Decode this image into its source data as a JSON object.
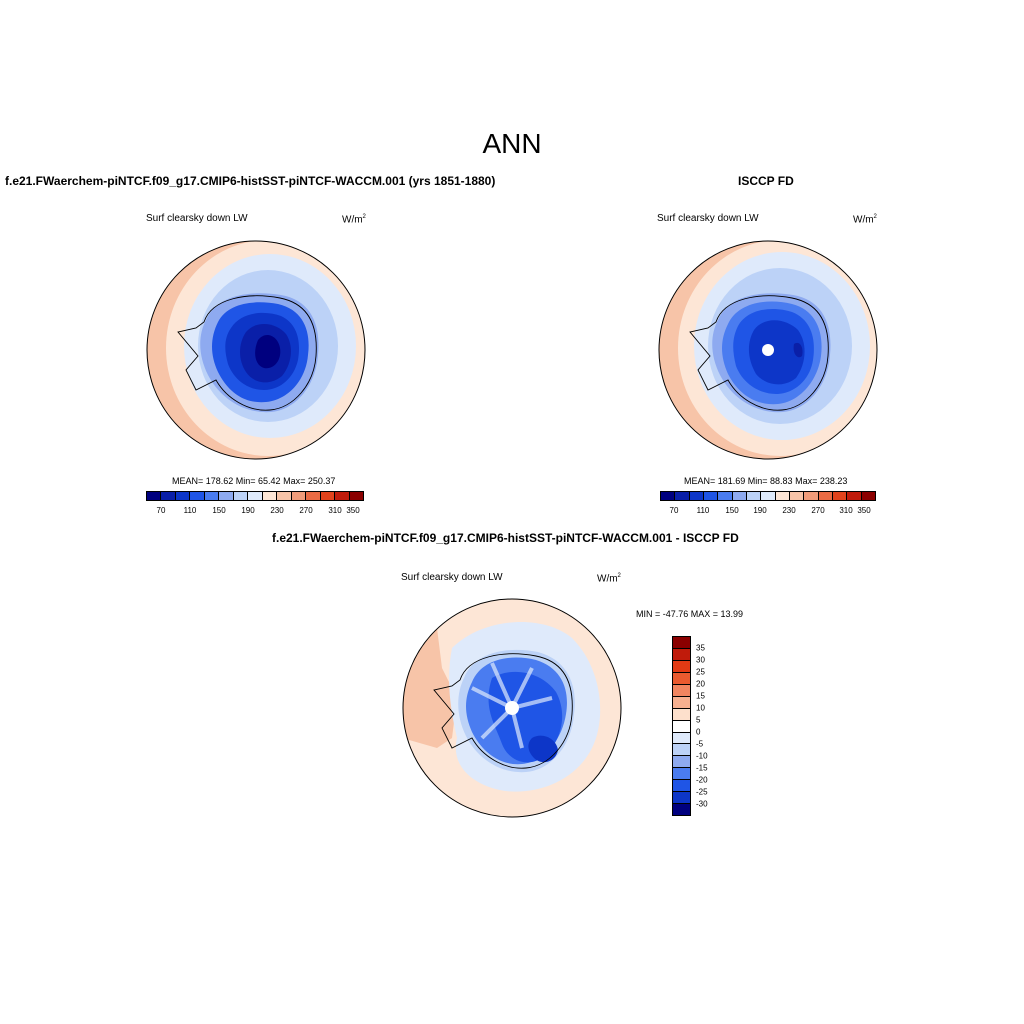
{
  "main_title": "ANN",
  "top_left": {
    "title": "f.e21.FWaerchem-piNTCF.f09_g17.CMIP6-histSST-piNTCF-WACCM.001 (yrs 1851-1880)",
    "variable": "Surf clearsky down LW",
    "units": "W/m",
    "units_sup": "2",
    "stats": "MEAN= 178.62  Min=  65.42  Max= 250.37",
    "cbar_labels": [
      "70",
      "110",
      "150",
      "190",
      "230",
      "270",
      "310",
      "350"
    ]
  },
  "top_right": {
    "title": "ISCCP FD",
    "variable": "Surf clearsky down LW",
    "units": "W/m",
    "units_sup": "2",
    "stats": "MEAN= 181.69  Min=  88.83  Max= 238.23",
    "cbar_labels": [
      "70",
      "110",
      "150",
      "190",
      "230",
      "270",
      "310",
      "350"
    ]
  },
  "bottom": {
    "title": "f.e21.FWaerchem-piNTCF.f09_g17.CMIP6-histSST-piNTCF-WACCM.001 - ISCCP FD",
    "variable": "Surf clearsky down LW",
    "units": "W/m",
    "units_sup": "2",
    "stats": "MIN = -47.76 MAX =  13.99",
    "cbar_labels": [
      "35",
      "30",
      "25",
      "20",
      "15",
      "10",
      "5",
      "0",
      "-5",
      "-10",
      "-15",
      "-20",
      "-25",
      "-30",
      "-35"
    ]
  },
  "colors": {
    "abs_scale": [
      "#00007f",
      "#0a1fa8",
      "#0d36c8",
      "#1f55e6",
      "#4a7cf0",
      "#8eaaf0",
      "#bcd2f7",
      "#dfeafb",
      "#fde6d6",
      "#f7c4a8",
      "#f19c7a",
      "#ea6b44",
      "#e2431c",
      "#c01b0b",
      "#8b0000"
    ],
    "diff_scale": [
      "#8b0000",
      "#c01b0b",
      "#e23a14",
      "#ea5a2f",
      "#f18560",
      "#f7b090",
      "#fde0cc",
      "#ffffff",
      "#dfeafb",
      "#bcd2f7",
      "#8eaaf0",
      "#4a7cf0",
      "#1f55e6",
      "#0d36c8",
      "#00007f"
    ]
  }
}
